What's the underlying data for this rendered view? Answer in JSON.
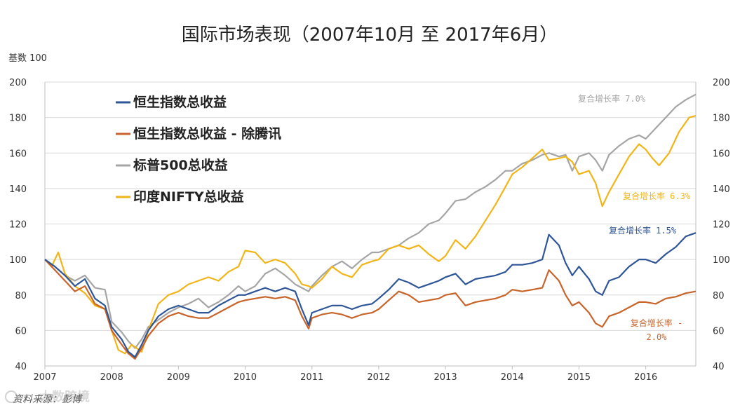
{
  "chart_data": {
    "type": "line",
    "title": "国际市场表现（2007年10月 至 2017年6月）",
    "ylabel": "基数 100",
    "ylim": [
      40,
      200
    ],
    "yticks": [
      40,
      60,
      80,
      100,
      120,
      140,
      160,
      180,
      200
    ],
    "xlim": [
      2007,
      2016.75
    ],
    "xticks": [
      2007,
      2008,
      2009,
      2010,
      2011,
      2012,
      2013,
      2014,
      2015,
      2016
    ],
    "xticklabels": [
      "2007",
      "2008",
      "2009",
      "2010",
      "2011",
      "2012",
      "2013",
      "2014",
      "2015",
      "2016"
    ],
    "legend_position": "top-left",
    "series": [
      {
        "name": "恒生指数总收益",
        "color": "#2e5597",
        "points": [
          [
            2007.0,
            100
          ],
          [
            2007.15,
            96
          ],
          [
            2007.3,
            91
          ],
          [
            2007.45,
            85
          ],
          [
            2007.6,
            89
          ],
          [
            2007.75,
            78
          ],
          [
            2007.9,
            74
          ],
          [
            2008.0,
            62
          ],
          [
            2008.15,
            55
          ],
          [
            2008.25,
            48
          ],
          [
            2008.35,
            45
          ],
          [
            2008.45,
            52
          ],
          [
            2008.55,
            60
          ],
          [
            2008.7,
            68
          ],
          [
            2008.85,
            72
          ],
          [
            2009.0,
            74
          ],
          [
            2009.15,
            72
          ],
          [
            2009.3,
            70
          ],
          [
            2009.45,
            70
          ],
          [
            2009.6,
            74
          ],
          [
            2009.75,
            77
          ],
          [
            2009.9,
            80
          ],
          [
            2010.0,
            80
          ],
          [
            2010.15,
            82
          ],
          [
            2010.3,
            84
          ],
          [
            2010.45,
            82
          ],
          [
            2010.6,
            84
          ],
          [
            2010.75,
            82
          ],
          [
            2010.85,
            72
          ],
          [
            2010.95,
            63
          ],
          [
            2011.0,
            70
          ],
          [
            2011.15,
            72
          ],
          [
            2011.3,
            74
          ],
          [
            2011.45,
            74
          ],
          [
            2011.6,
            72
          ],
          [
            2011.75,
            74
          ],
          [
            2011.9,
            75
          ],
          [
            2012.0,
            78
          ],
          [
            2012.15,
            83
          ],
          [
            2012.3,
            89
          ],
          [
            2012.45,
            87
          ],
          [
            2012.6,
            84
          ],
          [
            2012.75,
            86
          ],
          [
            2012.9,
            88
          ],
          [
            2013.0,
            90
          ],
          [
            2013.15,
            92
          ],
          [
            2013.3,
            86
          ],
          [
            2013.45,
            89
          ],
          [
            2013.6,
            90
          ],
          [
            2013.75,
            91
          ],
          [
            2013.9,
            93
          ],
          [
            2014.0,
            97
          ],
          [
            2014.15,
            97
          ],
          [
            2014.3,
            98
          ],
          [
            2014.45,
            100
          ],
          [
            2014.55,
            114
          ],
          [
            2014.7,
            108
          ],
          [
            2014.8,
            98
          ],
          [
            2014.9,
            91
          ],
          [
            2015.0,
            96
          ],
          [
            2015.15,
            89
          ],
          [
            2015.25,
            82
          ],
          [
            2015.35,
            80
          ],
          [
            2015.45,
            88
          ],
          [
            2015.6,
            90
          ],
          [
            2015.75,
            96
          ],
          [
            2015.9,
            100
          ],
          [
            2016.0,
            100
          ],
          [
            2016.15,
            98
          ],
          [
            2016.3,
            103
          ],
          [
            2016.45,
            107
          ],
          [
            2016.6,
            113
          ],
          [
            2016.75,
            115
          ]
        ]
      },
      {
        "name": "恒生指数总收益 - 除腾讯",
        "color": "#c8642a",
        "points": [
          [
            2007.0,
            100
          ],
          [
            2007.15,
            94
          ],
          [
            2007.3,
            88
          ],
          [
            2007.45,
            82
          ],
          [
            2007.6,
            85
          ],
          [
            2007.75,
            75
          ],
          [
            2007.9,
            72
          ],
          [
            2008.0,
            60
          ],
          [
            2008.15,
            52
          ],
          [
            2008.25,
            47
          ],
          [
            2008.35,
            44
          ],
          [
            2008.45,
            50
          ],
          [
            2008.55,
            57
          ],
          [
            2008.7,
            64
          ],
          [
            2008.85,
            68
          ],
          [
            2009.0,
            70
          ],
          [
            2009.15,
            68
          ],
          [
            2009.3,
            67
          ],
          [
            2009.45,
            67
          ],
          [
            2009.6,
            70
          ],
          [
            2009.75,
            73
          ],
          [
            2009.9,
            76
          ],
          [
            2010.0,
            77
          ],
          [
            2010.15,
            78
          ],
          [
            2010.3,
            79
          ],
          [
            2010.45,
            78
          ],
          [
            2010.6,
            79
          ],
          [
            2010.75,
            77
          ],
          [
            2010.85,
            68
          ],
          [
            2010.95,
            61
          ],
          [
            2011.0,
            67
          ],
          [
            2011.15,
            69
          ],
          [
            2011.3,
            70
          ],
          [
            2011.45,
            69
          ],
          [
            2011.6,
            67
          ],
          [
            2011.75,
            69
          ],
          [
            2011.9,
            70
          ],
          [
            2012.0,
            72
          ],
          [
            2012.15,
            77
          ],
          [
            2012.3,
            82
          ],
          [
            2012.45,
            80
          ],
          [
            2012.6,
            76
          ],
          [
            2012.75,
            77
          ],
          [
            2012.9,
            78
          ],
          [
            2013.0,
            80
          ],
          [
            2013.15,
            81
          ],
          [
            2013.3,
            74
          ],
          [
            2013.45,
            76
          ],
          [
            2013.6,
            77
          ],
          [
            2013.75,
            78
          ],
          [
            2013.9,
            80
          ],
          [
            2014.0,
            83
          ],
          [
            2014.15,
            82
          ],
          [
            2014.3,
            83
          ],
          [
            2014.45,
            84
          ],
          [
            2014.55,
            94
          ],
          [
            2014.7,
            88
          ],
          [
            2014.8,
            80
          ],
          [
            2014.9,
            74
          ],
          [
            2015.0,
            76
          ],
          [
            2015.15,
            70
          ],
          [
            2015.25,
            64
          ],
          [
            2015.35,
            62
          ],
          [
            2015.45,
            68
          ],
          [
            2015.6,
            70
          ],
          [
            2015.75,
            73
          ],
          [
            2015.9,
            76
          ],
          [
            2016.0,
            76
          ],
          [
            2016.15,
            75
          ],
          [
            2016.3,
            78
          ],
          [
            2016.45,
            79
          ],
          [
            2016.6,
            81
          ],
          [
            2016.75,
            82
          ]
        ]
      },
      {
        "name": "标普500总收益",
        "color": "#a5a5a5",
        "points": [
          [
            2007.0,
            100
          ],
          [
            2007.15,
            96
          ],
          [
            2007.3,
            91
          ],
          [
            2007.45,
            88
          ],
          [
            2007.6,
            91
          ],
          [
            2007.75,
            84
          ],
          [
            2007.9,
            83
          ],
          [
            2008.0,
            65
          ],
          [
            2008.15,
            59
          ],
          [
            2008.25,
            54
          ],
          [
            2008.35,
            50
          ],
          [
            2008.45,
            55
          ],
          [
            2008.55,
            62
          ],
          [
            2008.7,
            66
          ],
          [
            2008.85,
            70
          ],
          [
            2009.0,
            73
          ],
          [
            2009.15,
            75
          ],
          [
            2009.3,
            78
          ],
          [
            2009.45,
            73
          ],
          [
            2009.6,
            76
          ],
          [
            2009.75,
            80
          ],
          [
            2009.9,
            85
          ],
          [
            2010.0,
            82
          ],
          [
            2010.15,
            85
          ],
          [
            2010.3,
            92
          ],
          [
            2010.45,
            95
          ],
          [
            2010.6,
            91
          ],
          [
            2010.75,
            86
          ],
          [
            2010.85,
            84
          ],
          [
            2010.95,
            82
          ],
          [
            2011.0,
            85
          ],
          [
            2011.15,
            91
          ],
          [
            2011.3,
            96
          ],
          [
            2011.45,
            99
          ],
          [
            2011.6,
            95
          ],
          [
            2011.75,
            100
          ],
          [
            2011.9,
            104
          ],
          [
            2012.0,
            104
          ],
          [
            2012.15,
            106
          ],
          [
            2012.3,
            108
          ],
          [
            2012.45,
            112
          ],
          [
            2012.6,
            115
          ],
          [
            2012.75,
            120
          ],
          [
            2012.9,
            122
          ],
          [
            2013.0,
            126
          ],
          [
            2013.15,
            133
          ],
          [
            2013.3,
            134
          ],
          [
            2013.45,
            138
          ],
          [
            2013.6,
            141
          ],
          [
            2013.75,
            145
          ],
          [
            2013.9,
            150
          ],
          [
            2014.0,
            150
          ],
          [
            2014.15,
            154
          ],
          [
            2014.3,
            156
          ],
          [
            2014.45,
            159
          ],
          [
            2014.55,
            160
          ],
          [
            2014.7,
            158
          ],
          [
            2014.8,
            159
          ],
          [
            2014.9,
            150
          ],
          [
            2015.0,
            158
          ],
          [
            2015.15,
            160
          ],
          [
            2015.25,
            156
          ],
          [
            2015.35,
            150
          ],
          [
            2015.45,
            159
          ],
          [
            2015.6,
            164
          ],
          [
            2015.75,
            168
          ],
          [
            2015.9,
            170
          ],
          [
            2016.0,
            168
          ],
          [
            2016.15,
            174
          ],
          [
            2016.3,
            180
          ],
          [
            2016.45,
            186
          ],
          [
            2016.6,
            190
          ],
          [
            2016.75,
            193
          ]
        ]
      },
      {
        "name": "印度NIFTY总收益",
        "color": "#f2b518",
        "points": [
          [
            2007.0,
            100
          ],
          [
            2007.1,
            96
          ],
          [
            2007.2,
            104
          ],
          [
            2007.3,
            92
          ],
          [
            2007.45,
            85
          ],
          [
            2007.6,
            81
          ],
          [
            2007.75,
            74
          ],
          [
            2007.9,
            72
          ],
          [
            2008.0,
            60
          ],
          [
            2008.1,
            49
          ],
          [
            2008.2,
            47
          ],
          [
            2008.3,
            52
          ],
          [
            2008.45,
            48
          ],
          [
            2008.55,
            60
          ],
          [
            2008.7,
            75
          ],
          [
            2008.85,
            80
          ],
          [
            2009.0,
            82
          ],
          [
            2009.15,
            86
          ],
          [
            2009.3,
            88
          ],
          [
            2009.45,
            90
          ],
          [
            2009.6,
            88
          ],
          [
            2009.75,
            93
          ],
          [
            2009.9,
            96
          ],
          [
            2010.0,
            105
          ],
          [
            2010.15,
            104
          ],
          [
            2010.3,
            98
          ],
          [
            2010.45,
            100
          ],
          [
            2010.6,
            98
          ],
          [
            2010.75,
            92
          ],
          [
            2010.85,
            86
          ],
          [
            2010.95,
            85
          ],
          [
            2011.0,
            84
          ],
          [
            2011.15,
            89
          ],
          [
            2011.3,
            96
          ],
          [
            2011.45,
            92
          ],
          [
            2011.6,
            90
          ],
          [
            2011.75,
            97
          ],
          [
            2011.9,
            99
          ],
          [
            2012.0,
            100
          ],
          [
            2012.15,
            106
          ],
          [
            2012.3,
            108
          ],
          [
            2012.45,
            106
          ],
          [
            2012.6,
            108
          ],
          [
            2012.75,
            103
          ],
          [
            2012.9,
            99
          ],
          [
            2013.0,
            102
          ],
          [
            2013.15,
            111
          ],
          [
            2013.3,
            106
          ],
          [
            2013.45,
            113
          ],
          [
            2013.6,
            122
          ],
          [
            2013.75,
            131
          ],
          [
            2013.9,
            141
          ],
          [
            2014.0,
            148
          ],
          [
            2014.15,
            152
          ],
          [
            2014.3,
            157
          ],
          [
            2014.45,
            162
          ],
          [
            2014.55,
            156
          ],
          [
            2014.7,
            157
          ],
          [
            2014.8,
            158
          ],
          [
            2014.9,
            155
          ],
          [
            2015.0,
            148
          ],
          [
            2015.15,
            150
          ],
          [
            2015.25,
            143
          ],
          [
            2015.35,
            130
          ],
          [
            2015.45,
            138
          ],
          [
            2015.6,
            148
          ],
          [
            2015.75,
            158
          ],
          [
            2015.9,
            165
          ],
          [
            2016.0,
            162
          ],
          [
            2016.1,
            157
          ],
          [
            2016.2,
            153
          ],
          [
            2016.35,
            160
          ],
          [
            2016.5,
            172
          ],
          [
            2016.65,
            180
          ],
          [
            2016.75,
            181
          ]
        ]
      }
    ],
    "annotations": [
      {
        "series": 2,
        "text": "复合增长率 7.0%"
      },
      {
        "series": 3,
        "text": "复合增长率 6.3%"
      },
      {
        "series": 0,
        "text": "复合增长率 1.5%"
      },
      {
        "series": 1,
        "text": "复合增长率 -",
        "text2": "2.0%"
      }
    ]
  },
  "footer": {
    "source": "资料来源：彭博",
    "watermark": "大数跨境"
  }
}
